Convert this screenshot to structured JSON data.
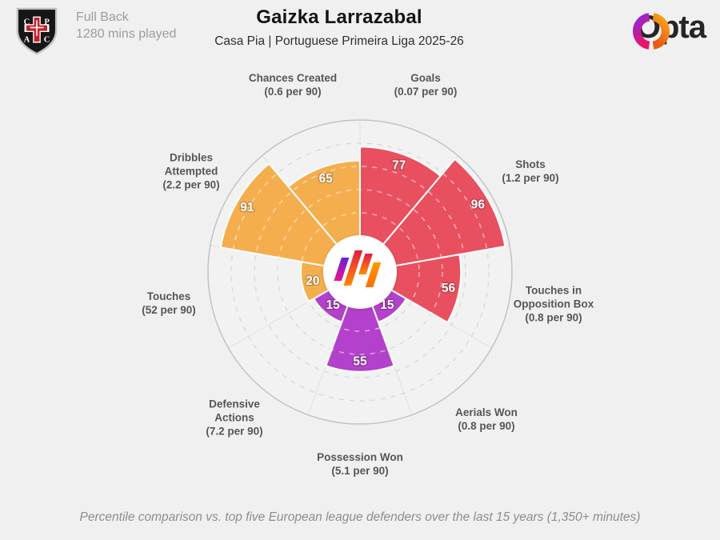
{
  "header": {
    "position_label": "Full Back",
    "minutes_label": "1280 mins played",
    "crest_letters": [
      "C",
      "P",
      "A",
      "C"
    ],
    "title": "Gaizka Larrazabal",
    "subtitle": "Casa Pia | Portuguese Primeira Liga 2025-26",
    "brand": "Opta"
  },
  "footer": {
    "caption": "Percentile comparison vs. top five European league defenders over the last 15 years (1,350+ minutes)"
  },
  "colors": {
    "attacking": "#e9505f",
    "defending": "#b341cb",
    "possession": "#f5ae4d",
    "opta_purple": "#8e28d8",
    "opta_magenta": "#ea1568",
    "opta_amber": "#f4a71c",
    "opta_orange": "#ec5a14"
  },
  "chart_data": {
    "type": "pie",
    "subtype": "percentile-pizza",
    "unit": "percentile",
    "rlim": [
      0,
      100
    ],
    "rings": [
      20,
      40,
      60,
      80
    ],
    "start_angle_deg": 0,
    "direction": "clockwise",
    "series": [
      {
        "label": "Goals",
        "label_lines": [
          "Goals"
        ],
        "per90": "(0.07 per 90)",
        "value": 77,
        "color": "#e9505f"
      },
      {
        "label": "Shots",
        "label_lines": [
          "Shots"
        ],
        "per90": "(1.2 per 90)",
        "value": 96,
        "color": "#e9505f"
      },
      {
        "label": "Touches in Opposition Box",
        "label_lines": [
          "Touches in",
          "Opposition Box"
        ],
        "per90": "(0.8 per 90)",
        "value": 56,
        "color": "#e9505f"
      },
      {
        "label": "Aerials Won",
        "label_lines": [
          "Aerials Won"
        ],
        "per90": "(0.8 per 90)",
        "value": 15,
        "color": "#b341cb"
      },
      {
        "label": "Possession Won",
        "label_lines": [
          "Possession Won"
        ],
        "per90": "(5.1 per 90)",
        "value": 55,
        "color": "#b341cb"
      },
      {
        "label": "Defensive Actions",
        "label_lines": [
          "Defensive",
          "Actions"
        ],
        "per90": "(7.2 per 90)",
        "value": 15,
        "color": "#b341cb"
      },
      {
        "label": "Touches",
        "label_lines": [
          "Touches"
        ],
        "per90": "(52 per 90)",
        "value": 20,
        "color": "#f5ae4d"
      },
      {
        "label": "Dribbles Attempted",
        "label_lines": [
          "Dribbles",
          "Attempted"
        ],
        "per90": "(2.2 per 90)",
        "value": 91,
        "color": "#f5ae4d"
      },
      {
        "label": "Chances Created",
        "label_lines": [
          "Chances Created"
        ],
        "per90": "(0.6 per 90)",
        "value": 65,
        "color": "#f5ae4d"
      }
    ]
  }
}
